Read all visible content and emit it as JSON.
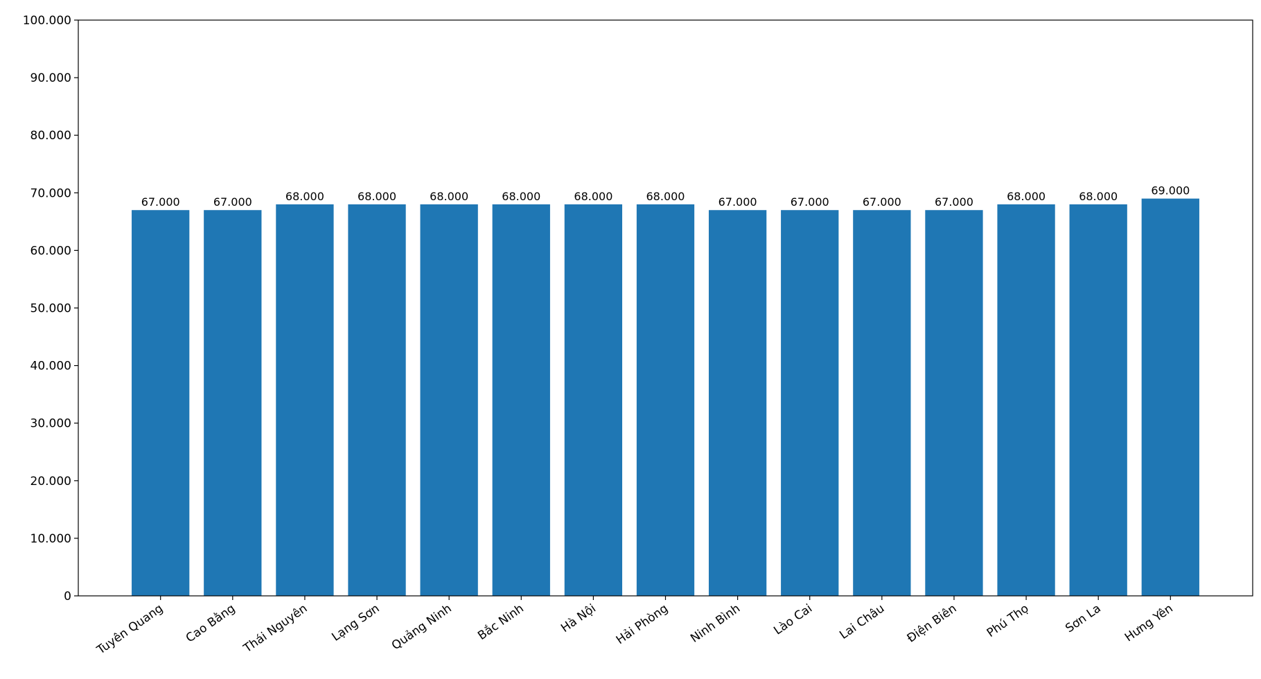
{
  "chart_data": {
    "type": "bar",
    "categories": [
      "Tuyên Quang",
      "Cao Bằng",
      "Thái Nguyên",
      "Lạng Sơn",
      "Quảng Ninh",
      "Bắc Ninh",
      "Hà Nội",
      "Hải Phòng",
      "Ninh Bình",
      "Lào Cai",
      "Lai Châu",
      "Điện Biên",
      "Phú Thọ",
      "Sơn La",
      "Hưng Yên"
    ],
    "values": [
      67000,
      67000,
      68000,
      68000,
      68000,
      68000,
      68000,
      68000,
      67000,
      67000,
      67000,
      67000,
      68000,
      68000,
      69000
    ],
    "value_labels": [
      "67.000",
      "67.000",
      "68.000",
      "68.000",
      "68.000",
      "68.000",
      "68.000",
      "68.000",
      "67.000",
      "67.000",
      "67.000",
      "67.000",
      "68.000",
      "68.000",
      "69.000"
    ],
    "color": "#1f77b4",
    "ylim": [
      0,
      100000
    ],
    "yticks": [
      0,
      {
        "value": 10000,
        "label": "10.000"
      },
      {
        "value": 20000,
        "label": "20.000"
      },
      {
        "value": 30000,
        "label": "30.000"
      },
      {
        "value": 40000,
        "label": "40.000"
      },
      {
        "value": 50000,
        "label": "50.000"
      },
      {
        "value": 60000,
        "label": "60.000"
      },
      {
        "value": 70000,
        "label": "70.000"
      },
      {
        "value": 80000,
        "label": "80.000"
      },
      {
        "value": 90000,
        "label": "90.000"
      },
      {
        "value": 100000,
        "label": "100.000"
      }
    ],
    "grid": false
  }
}
